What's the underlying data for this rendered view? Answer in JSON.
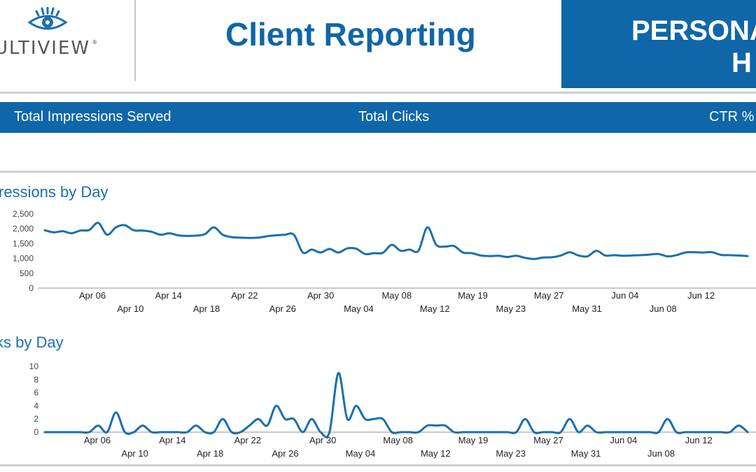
{
  "header": {
    "logo_text": "ULTIVIEW",
    "logo_reg": "®",
    "title": "Client Reporting",
    "client_line1": "PERSONA",
    "client_line2": "H",
    "colors": {
      "brand": "#0f66a8",
      "line": "#1a6fae",
      "rule": "#cfcfcf"
    }
  },
  "metrics": {
    "impressions_label": "Total Impressions Served",
    "clicks_label": "Total Clicks",
    "ctr_label": "CTR %"
  },
  "chart_data": [
    {
      "type": "line",
      "title": "ressions by Day",
      "xlabel": "",
      "ylabel": "",
      "ylim": [
        0,
        2500
      ],
      "yticks": [
        0,
        500,
        1000,
        1500,
        2000,
        2500
      ],
      "ytick_labels": [
        "0",
        "500",
        "1,000",
        "1,500",
        "2,000",
        "2,500"
      ],
      "grid": false,
      "x_labels_upper": [
        "Apr 06",
        "Apr 14",
        "Apr 22",
        "Apr 30",
        "May 08",
        "May 19",
        "May 27",
        "Jun 04",
        "Jun 12"
      ],
      "x_labels_lower": [
        "Apr 10",
        "Apr 18",
        "Apr 26",
        "May 04",
        "May 12",
        "May 23",
        "May 31",
        "Jun 08"
      ],
      "series": [
        {
          "values": [
            1950,
            1880,
            1920,
            1850,
            1940,
            1960,
            2200,
            1800,
            2050,
            2120,
            1950,
            1940,
            1900,
            1800,
            1850,
            1780,
            1760,
            1770,
            1820,
            2050,
            1800,
            1720,
            1700,
            1690,
            1700,
            1750,
            1780,
            1800,
            1800,
            1200,
            1300,
            1200,
            1320,
            1200,
            1340,
            1330,
            1150,
            1180,
            1190,
            1460,
            1260,
            1300,
            1260,
            2050,
            1460,
            1400,
            1420,
            1200,
            1180,
            1100,
            1080,
            1090,
            1050,
            1090,
            1020,
            980,
            1030,
            1040,
            1100,
            1210,
            1100,
            1070,
            1260,
            1100,
            1110,
            1090,
            1100,
            1110,
            1130,
            1150,
            1070,
            1110,
            1200,
            1210,
            1200,
            1210,
            1120,
            1110,
            1100,
            1080
          ]
        }
      ]
    },
    {
      "type": "line",
      "title": "ks by Day",
      "xlabel": "",
      "ylabel": "",
      "ylim": [
        0,
        10
      ],
      "yticks": [
        0,
        2,
        4,
        6,
        8,
        10
      ],
      "ytick_labels": [
        "0",
        "2",
        "4",
        "6",
        "8",
        "10"
      ],
      "grid": false,
      "x_labels_upper": [
        "Apr 06",
        "Apr 14",
        "Apr 22",
        "Apr 30",
        "May 08",
        "May 19",
        "May 27",
        "Jun 04",
        "Jun 12"
      ],
      "x_labels_lower": [
        "Apr 10",
        "Apr 18",
        "Apr 26",
        "May 04",
        "May 12",
        "May 23",
        "May 31",
        "Jun 08"
      ],
      "series": [
        {
          "values": [
            0,
            0,
            0,
            0,
            0,
            0,
            1,
            0,
            3,
            0,
            0,
            1,
            0,
            0,
            0,
            0,
            0,
            1,
            0,
            0,
            2,
            0,
            0,
            1,
            2,
            1,
            4,
            2,
            2,
            0,
            2,
            0,
            0,
            9,
            2,
            4,
            2,
            2,
            2,
            0,
            0,
            0,
            0,
            1,
            1,
            1,
            0,
            0,
            0,
            0,
            0,
            0,
            0,
            0,
            2,
            0,
            0,
            0,
            0,
            2,
            0,
            1,
            0,
            0,
            0,
            0,
            0,
            0,
            0,
            0,
            2,
            0,
            0,
            0,
            0,
            0,
            0,
            0,
            1,
            0
          ]
        }
      ]
    }
  ]
}
